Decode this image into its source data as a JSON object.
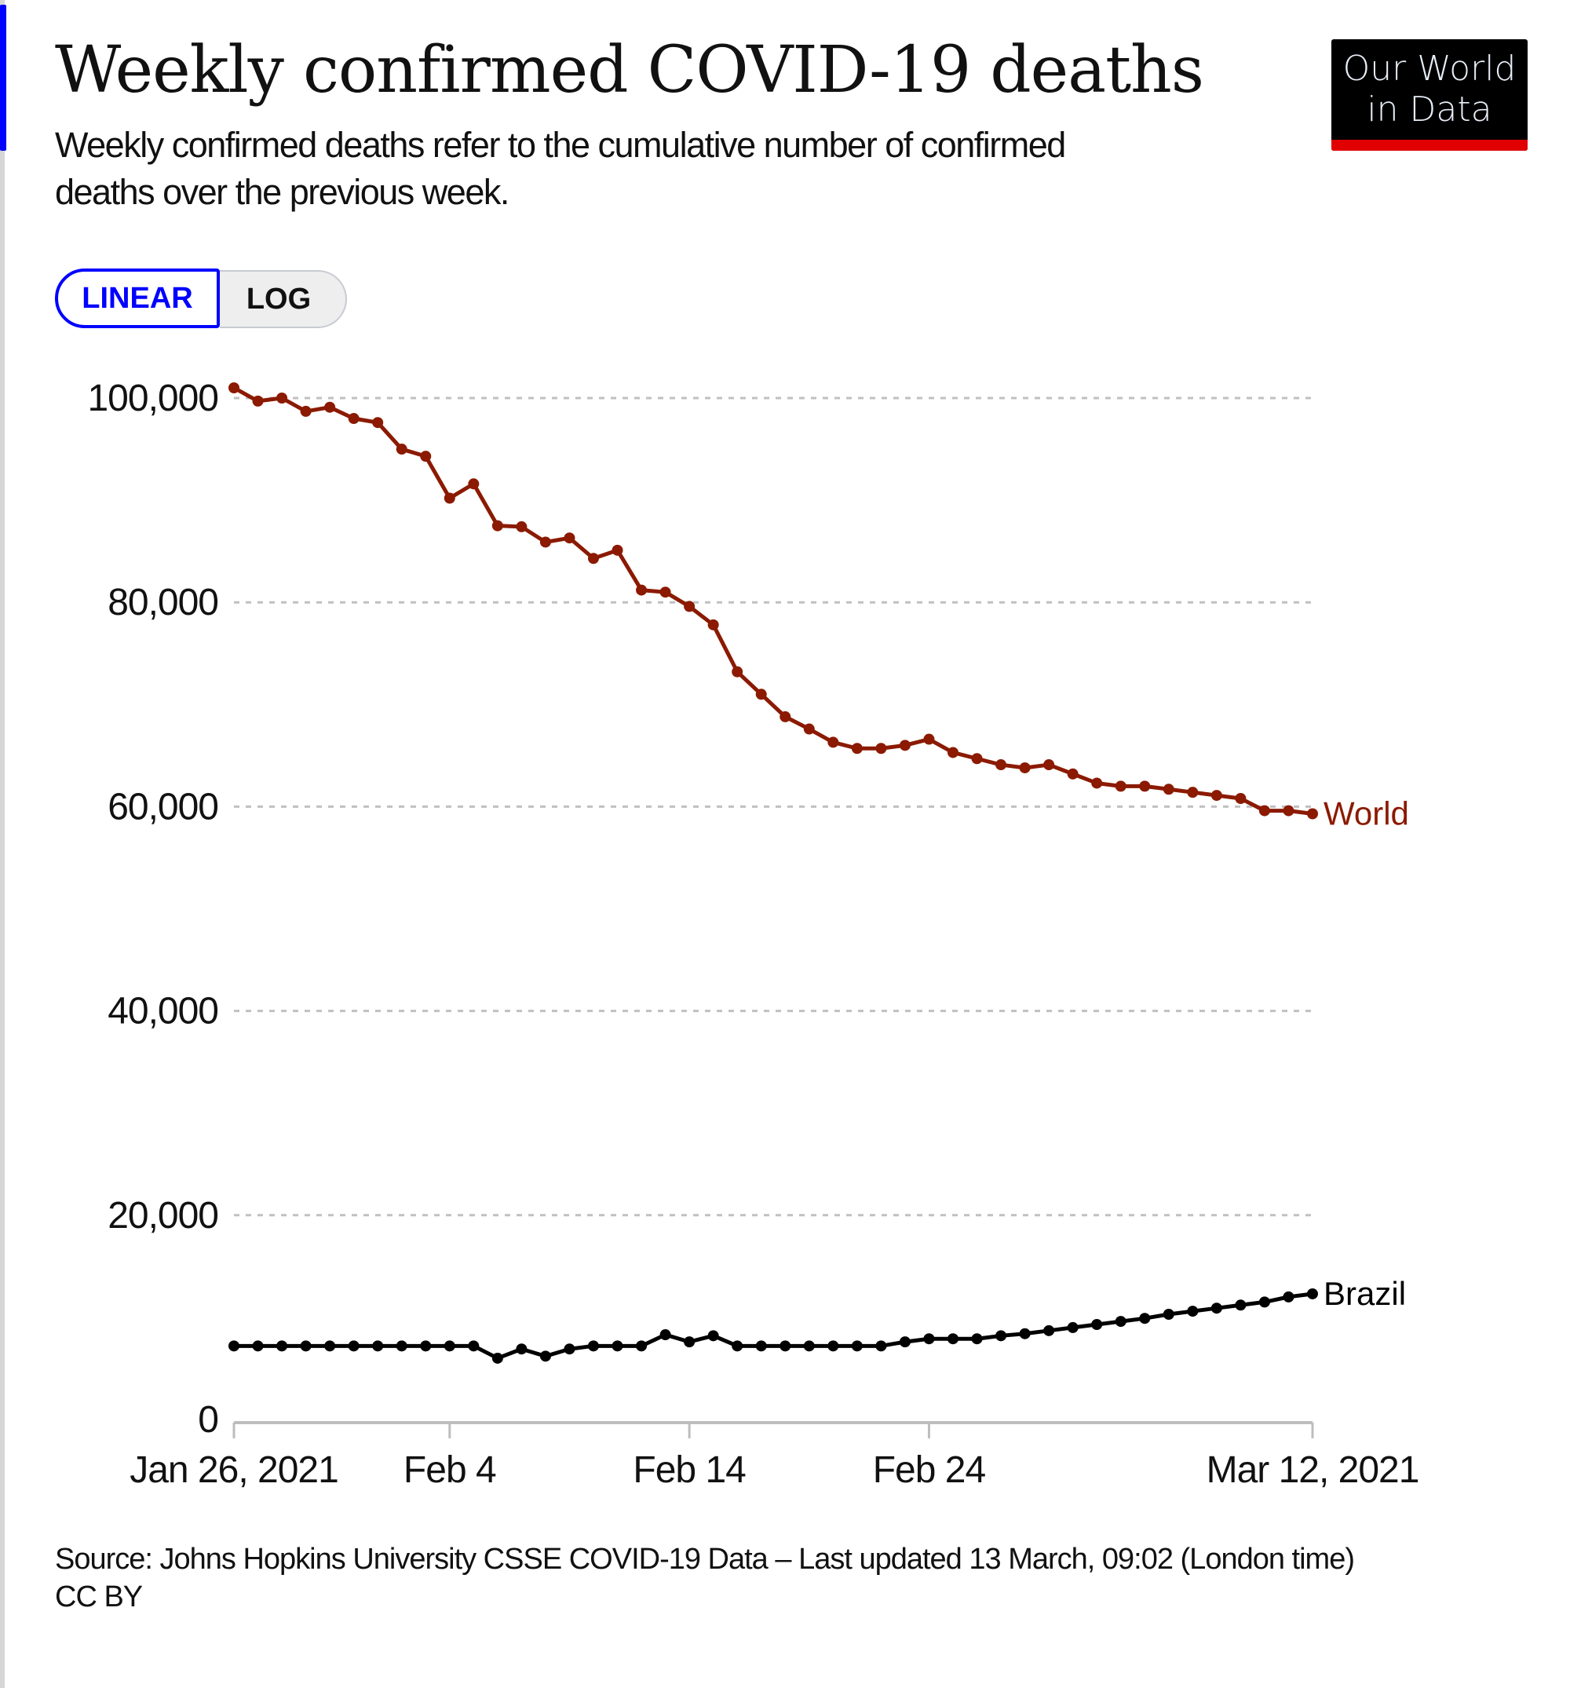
{
  "header": {
    "title": "Weekly confirmed COVID-19 deaths",
    "subtitle": "Weekly confirmed deaths refer to the cumulative number of confirmed deaths over the previous week."
  },
  "logo": {
    "line1": "Our World",
    "line2": "in Data"
  },
  "scale_toggle": {
    "linear_label": "LINEAR",
    "log_label": "LOG",
    "selected": "LINEAR"
  },
  "colors": {
    "accent": "#0000ff",
    "world": "#8b1a00",
    "brazil": "#000000",
    "logo_bar": "#e00000",
    "grid": "#c0c0c0"
  },
  "chart_data": {
    "type": "line",
    "title": "Weekly confirmed COVID-19 deaths",
    "xlabel": "",
    "ylabel": "",
    "ylim": [
      0,
      100000
    ],
    "yticks": [
      0,
      20000,
      40000,
      60000,
      80000,
      100000
    ],
    "ytick_labels": [
      "0",
      "20,000",
      "40,000",
      "60,000",
      "80,000",
      "100,000"
    ],
    "x_range": [
      "2021-01-26",
      "2021-03-12"
    ],
    "xtick_days": [
      0,
      9,
      19,
      29,
      45
    ],
    "xtick_labels": [
      "Jan 26, 2021",
      "Feb 4",
      "Feb 14",
      "Feb 24",
      "Mar 12, 2021"
    ],
    "grid": "horizontal-dotted",
    "legend": "inline-right",
    "series": [
      {
        "name": "World",
        "color": "#8b1a00",
        "values": [
          101000,
          99700,
          100000,
          98700,
          99100,
          98000,
          97600,
          95000,
          94300,
          90200,
          91600,
          87500,
          87400,
          85900,
          86300,
          84300,
          85100,
          81200,
          81000,
          79600,
          77800,
          73200,
          71000,
          68800,
          67600,
          66300,
          65700,
          65700,
          66000,
          66600,
          65300,
          64700,
          64100,
          63800,
          64100,
          63200,
          62300,
          62000,
          62000,
          61700,
          61400,
          61100,
          60800,
          59600,
          59600,
          59300
        ]
      },
      {
        "name": "Brazil",
        "color": "#000000",
        "values": [
          7200,
          7200,
          7200,
          7200,
          7200,
          7200,
          7200,
          7200,
          7200,
          7200,
          7200,
          6000,
          6900,
          6200,
          6900,
          7200,
          7200,
          7200,
          8300,
          7600,
          8200,
          7200,
          7200,
          7200,
          7200,
          7200,
          7200,
          7200,
          7600,
          7900,
          7900,
          7900,
          8200,
          8400,
          8700,
          9000,
          9300,
          9600,
          9900,
          10300,
          10600,
          10900,
          11200,
          11500,
          12000,
          12300
        ]
      }
    ]
  },
  "footer": {
    "source": "Source: Johns Hopkins University CSSE COVID-19 Data – Last updated 13 March, 09:02 (London time)",
    "license": "CC BY"
  }
}
